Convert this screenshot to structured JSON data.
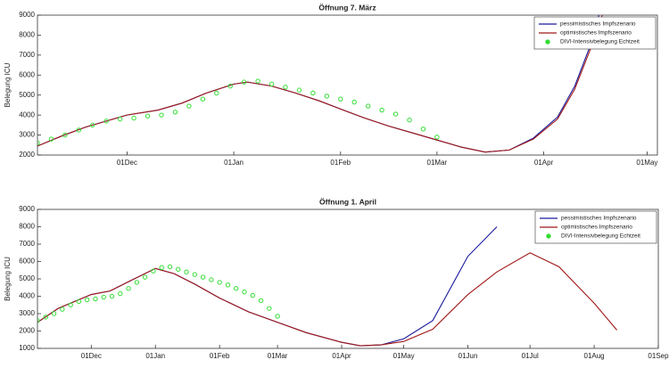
{
  "chart_data": [
    {
      "type": "line",
      "title": "Öffnung 7. März",
      "y_label": "Belegung ICU",
      "xlim": [
        "05Nov",
        "04May"
      ],
      "xticks": [
        "01Dec",
        "01Jan",
        "01Feb",
        "01Mar",
        "01Apr",
        "01May"
      ],
      "ylim": [
        2000,
        9000
      ],
      "yticks": [
        2000,
        3000,
        4000,
        5000,
        6000,
        7000,
        8000,
        9000
      ],
      "legend": "upper right",
      "series": [
        {
          "name": "pessimistisches Impfszenario",
          "color": "#1a1a9c",
          "mode": "lines",
          "x": [
            "05Nov",
            "12Nov",
            "19Nov",
            "26Nov",
            "01Dec",
            "10Dec",
            "17Dec",
            "24Dec",
            "01Jan",
            "05Jan",
            "12Jan",
            "19Jan",
            "26Jan",
            "01Feb",
            "08Feb",
            "15Feb",
            "22Feb",
            "01Mar",
            "08Mar",
            "15Mar",
            "22Mar",
            "29Mar",
            "05Apr",
            "10Apr",
            "15Apr",
            "17Apr"
          ],
          "values": [
            2450,
            2950,
            3400,
            3750,
            4000,
            4250,
            4600,
            5100,
            5550,
            5650,
            5450,
            5100,
            4700,
            4300,
            3850,
            3450,
            3100,
            2750,
            2400,
            2150,
            2250,
            2850,
            3900,
            5450,
            7700,
            9000
          ]
        },
        {
          "name": "optimistisches Impfszenario",
          "color": "#a01818",
          "mode": "lines",
          "x": [
            "05Nov",
            "12Nov",
            "19Nov",
            "26Nov",
            "01Dec",
            "10Dec",
            "17Dec",
            "24Dec",
            "01Jan",
            "05Jan",
            "12Jan",
            "19Jan",
            "26Jan",
            "01Feb",
            "08Feb",
            "15Feb",
            "22Feb",
            "01Mar",
            "08Mar",
            "15Mar",
            "22Mar",
            "29Mar",
            "05Apr",
            "10Apr",
            "15Apr",
            "18Apr"
          ],
          "values": [
            2450,
            2950,
            3400,
            3750,
            4000,
            4250,
            4600,
            5100,
            5550,
            5650,
            5450,
            5100,
            4700,
            4300,
            3850,
            3450,
            3100,
            2750,
            2400,
            2150,
            2250,
            2800,
            3800,
            5300,
            7500,
            9000
          ]
        },
        {
          "name": "DIVI-Intensivbelegung Echtzeit",
          "color": "#33dd33",
          "mode": "markers",
          "x": [
            "05Nov",
            "09Nov",
            "13Nov",
            "17Nov",
            "21Nov",
            "25Nov",
            "29Nov",
            "03Dec",
            "07Dec",
            "11Dec",
            "15Dec",
            "19Dec",
            "23Dec",
            "27Dec",
            "31Dec",
            "04Jan",
            "08Jan",
            "12Jan",
            "16Jan",
            "20Jan",
            "24Jan",
            "28Jan",
            "01Feb",
            "05Feb",
            "09Feb",
            "13Feb",
            "17Feb",
            "21Feb",
            "25Feb",
            "01Mar"
          ],
          "values": [
            2600,
            2800,
            3000,
            3250,
            3500,
            3700,
            3800,
            3850,
            3950,
            4000,
            4150,
            4450,
            4800,
            5100,
            5450,
            5650,
            5700,
            5550,
            5400,
            5250,
            5100,
            4950,
            4800,
            4650,
            4450,
            4250,
            4050,
            3750,
            3300,
            2900
          ]
        }
      ]
    },
    {
      "type": "line",
      "title": "Öffnung 1. April",
      "y_label": "Belegung ICU",
      "xlim": [
        "05Nov",
        "01Sep"
      ],
      "xticks": [
        "01Dec",
        "01Jan",
        "01Feb",
        "01Mar",
        "01Apr",
        "01May",
        "01Jun",
        "01Jul",
        "01Aug",
        "01Sep"
      ],
      "ylim": [
        1000,
        9000
      ],
      "yticks": [
        1000,
        2000,
        3000,
        4000,
        5000,
        6000,
        7000,
        8000,
        9000
      ],
      "legend": "upper right",
      "series": [
        {
          "name": "pessimistisches Impfszenario",
          "color": "#1a1a9c",
          "mode": "lines",
          "x": [
            "05Nov",
            "15Nov",
            "25Nov",
            "01Dec",
            "10Dec",
            "20Dec",
            "01Jan",
            "10Jan",
            "20Jan",
            "01Feb",
            "15Feb",
            "01Mar",
            "15Mar",
            "01Apr",
            "10Apr",
            "20Apr",
            "01May",
            "15May",
            "01Jun",
            "15Jun"
          ],
          "values": [
            2500,
            3300,
            3800,
            4100,
            4300,
            4900,
            5600,
            5300,
            4700,
            3900,
            3100,
            2500,
            1900,
            1350,
            1150,
            1200,
            1550,
            2600,
            6300,
            8000
          ]
        },
        {
          "name": "optimistisches Impfszenario",
          "color": "#a01818",
          "mode": "lines",
          "x": [
            "05Nov",
            "15Nov",
            "25Nov",
            "01Dec",
            "10Dec",
            "20Dec",
            "01Jan",
            "10Jan",
            "20Jan",
            "01Feb",
            "15Feb",
            "01Mar",
            "15Mar",
            "01Apr",
            "10Apr",
            "20Apr",
            "01May",
            "15May",
            "01Jun",
            "15Jun",
            "01Jul",
            "15Jul",
            "01Aug",
            "12Aug"
          ],
          "values": [
            2500,
            3300,
            3800,
            4100,
            4300,
            4900,
            5600,
            5300,
            4700,
            3900,
            3100,
            2500,
            1900,
            1350,
            1150,
            1200,
            1400,
            2100,
            4100,
            5400,
            6500,
            5700,
            3600,
            2050
          ]
        },
        {
          "name": "DIVI-Intensivbelegung Echtzeit",
          "color": "#33dd33",
          "mode": "markers",
          "x": [
            "05Nov",
            "09Nov",
            "13Nov",
            "17Nov",
            "21Nov",
            "25Nov",
            "29Nov",
            "03Dec",
            "07Dec",
            "11Dec",
            "15Dec",
            "19Dec",
            "23Dec",
            "27Dec",
            "31Dec",
            "04Jan",
            "08Jan",
            "12Jan",
            "16Jan",
            "20Jan",
            "24Jan",
            "28Jan",
            "01Feb",
            "05Feb",
            "09Feb",
            "13Feb",
            "17Feb",
            "21Feb",
            "25Feb",
            "01Mar"
          ],
          "values": [
            2600,
            2800,
            3000,
            3250,
            3500,
            3700,
            3800,
            3850,
            3950,
            4000,
            4150,
            4450,
            4800,
            5100,
            5450,
            5650,
            5700,
            5550,
            5400,
            5250,
            5100,
            4950,
            4800,
            4650,
            4450,
            4250,
            4050,
            3750,
            3300,
            2850
          ]
        }
      ]
    }
  ]
}
